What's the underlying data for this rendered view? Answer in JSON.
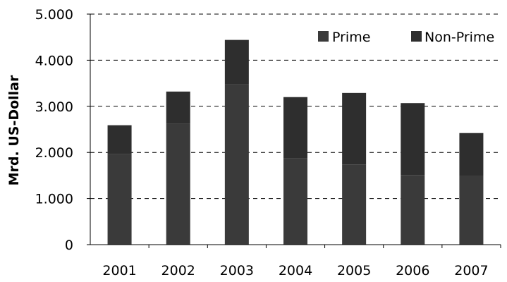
{
  "chart_data": {
    "type": "bar",
    "stacked": true,
    "categories": [
      "2001",
      "2002",
      "2003",
      "2004",
      "2005",
      "2006",
      "2007"
    ],
    "series": [
      {
        "name": "Prime",
        "color": "#3a3a3a",
        "values": [
          1960,
          2620,
          3480,
          1870,
          1740,
          1510,
          1490
        ]
      },
      {
        "name": "Non-Prime",
        "color": "#2e2e2e",
        "values": [
          630,
          700,
          960,
          1330,
          1550,
          1560,
          930
        ]
      }
    ],
    "ylabel": "Mrd. US-Dollar",
    "xlabel": "",
    "title": "",
    "ylim": [
      0,
      5000
    ],
    "y_ticks": [
      {
        "value": 0,
        "label": "0"
      },
      {
        "value": 1000,
        "label": "1.000"
      },
      {
        "value": 2000,
        "label": "2.000"
      },
      {
        "value": 3000,
        "label": "3.000"
      },
      {
        "value": 4000,
        "label": "4.000"
      },
      {
        "value": 5000,
        "label": "5.000"
      }
    ],
    "grid": true,
    "legend_position": "top-right"
  }
}
